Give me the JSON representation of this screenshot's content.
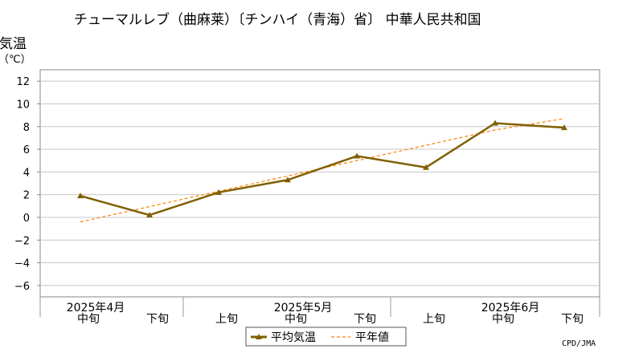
{
  "chart_data": {
    "type": "line",
    "title": "チューマルレブ（曲麻莱）〔チンハイ（青海）省〕 中華人民共和国",
    "ylabel": "気温",
    "yunit": "（℃）",
    "ylim": [
      -7,
      13
    ],
    "yticks": [
      12,
      10,
      8,
      6,
      4,
      2,
      0,
      -2,
      -4,
      -6
    ],
    "categories": [
      "中旬",
      "下旬",
      "上旬",
      "中旬",
      "下旬",
      "上旬",
      "中旬",
      "下旬"
    ],
    "month_labels": [
      {
        "label": "2025年4月",
        "category_index": 0
      },
      {
        "label": "2025年5月",
        "category_index": 3
      },
      {
        "label": "2025年6月",
        "category_index": 6
      }
    ],
    "series": [
      {
        "name": "平均気温",
        "values": [
          1.9,
          0.2,
          2.2,
          3.3,
          5.4,
          4.4,
          8.3,
          7.9
        ],
        "color": "#806000",
        "style": "solid",
        "marker": "triangle"
      },
      {
        "name": "平年値",
        "values": [
          -0.4,
          0.95,
          2.3,
          3.65,
          5.0,
          6.35,
          7.7,
          8.7
        ],
        "color": "#ff8000",
        "style": "dashed"
      }
    ],
    "grid": true,
    "legend": "bottom-center",
    "credit": "CPD/JMA"
  }
}
